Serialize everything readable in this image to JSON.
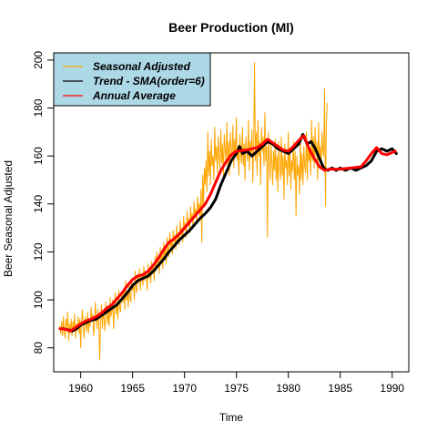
{
  "chart_data": {
    "type": "line",
    "title": "Beer Production (Ml)",
    "xlabel": "Time",
    "ylabel": "Beer Seasonal Adjusted",
    "xlim": [
      1957.4,
      1991.6
    ],
    "ylim": [
      70,
      203
    ],
    "xticks": [
      1960,
      1965,
      1970,
      1975,
      1980,
      1985,
      1990
    ],
    "yticks": [
      80,
      100,
      120,
      140,
      160,
      180,
      200
    ],
    "grid": false,
    "legend": {
      "position": "top-left",
      "background": "#add8e6",
      "entries": [
        {
          "label": "Seasonal Adjusted",
          "color": "#ffa500"
        },
        {
          "label": "Trend - SMA(order=6)",
          "color": "#000000"
        },
        {
          "label": "Annual Average",
          "color": "#ff0000"
        }
      ]
    },
    "series": [
      {
        "name": "Seasonal Adjusted",
        "color": "#ffa500",
        "x_start": 1958.0,
        "x_step": 0.0833,
        "values": [
          89,
          86,
          91,
          85,
          93,
          87,
          84,
          92,
          88,
          95,
          83,
          90,
          86,
          92,
          85,
          91,
          88,
          94,
          84,
          90,
          87,
          93,
          86,
          92,
          80,
          91,
          96,
          88,
          84,
          93,
          90,
          87,
          95,
          86,
          92,
          89,
          97,
          91,
          94,
          85,
          90,
          99,
          92,
          88,
          96,
          90,
          75,
          93,
          98,
          88,
          95,
          92,
          87,
          99,
          94,
          90,
          96,
          89,
          101,
          93,
          95,
          100,
          88,
          97,
          103,
          94,
          99,
          92,
          104,
          97,
          95,
          101,
          102,
          99,
          105,
          96,
          108,
          100,
          103,
          97,
          106,
          101,
          99,
          109,
          104,
          107,
          100,
          112,
          105,
          103,
          110,
          107,
          113,
          104,
          109,
          111,
          106,
          114,
          108,
          112,
          110,
          104,
          115,
          109,
          113,
          107,
          116,
          111,
          114,
          108,
          118,
          112,
          120,
          114,
          117,
          111,
          122,
          116,
          119,
          113,
          124,
          118,
          121,
          115,
          126,
          120,
          118,
          128,
          122,
          125,
          119,
          129,
          124,
          127,
          121,
          131,
          125,
          128,
          123,
          133,
          127,
          130,
          124,
          135,
          129,
          132,
          126,
          137,
          131,
          134,
          128,
          139,
          133,
          136,
          130,
          141,
          135,
          138,
          132,
          143,
          137,
          140,
          134,
          146,
          124,
          152,
          140,
          155,
          148,
          158,
          145,
          170,
          152,
          162,
          148,
          167,
          156,
          160,
          150,
          172,
          158,
          164,
          153,
          168,
          160,
          155,
          171,
          157,
          165,
          151,
          169,
          162,
          158,
          174,
          156,
          166,
          152,
          170,
          163,
          159,
          173,
          155,
          167,
          161,
          176,
          158,
          164,
          152,
          169,
          161,
          157,
          172,
          156,
          165,
          150,
          168,
          162,
          158,
          175,
          154,
          166,
          160,
          171,
          149,
          163,
          199,
          158,
          170,
          152,
          175,
          160,
          166,
          148,
          172,
          162,
          168,
          156,
          178,
          158,
          164,
          126,
          170,
          160,
          150,
          165,
          158,
          148,
          162,
          154,
          167,
          150,
          160,
          145,
          166,
          155,
          150,
          168,
          152,
          160,
          142,
          165,
          155,
          158,
          148,
          170,
          152,
          163,
          146,
          158,
          154,
          166,
          150,
          162,
          135,
          160,
          152,
          156,
          144,
          168,
          150,
          161,
          148,
          164,
          156,
          153,
          170,
          150,
          166,
          158,
          162,
          152,
          175,
          158,
          168,
          155,
          172,
          160,
          166,
          150,
          174,
          158,
          164,
          156,
          170,
          162,
          160,
          188,
          139,
          172,
          182
        ]
      },
      {
        "name": "Trend - SMA(order=6)",
        "color": "#000000",
        "points": [
          [
            1958.3,
            88
          ],
          [
            1958.8,
            87.5
          ],
          [
            1959.2,
            87
          ],
          [
            1959.6,
            88
          ],
          [
            1960.0,
            89.5
          ],
          [
            1960.5,
            90.5
          ],
          [
            1961.0,
            91.5
          ],
          [
            1961.5,
            92
          ],
          [
            1962.0,
            93.5
          ],
          [
            1962.5,
            95
          ],
          [
            1963.0,
            96.5
          ],
          [
            1963.5,
            98
          ],
          [
            1964.0,
            100.5
          ],
          [
            1964.5,
            103
          ],
          [
            1965.0,
            106
          ],
          [
            1965.5,
            108
          ],
          [
            1966.0,
            109
          ],
          [
            1966.5,
            110
          ],
          [
            1967.0,
            112
          ],
          [
            1967.5,
            114.5
          ],
          [
            1968.0,
            117
          ],
          [
            1968.5,
            120
          ],
          [
            1969.0,
            122.5
          ],
          [
            1969.5,
            125
          ],
          [
            1970.0,
            127
          ],
          [
            1970.5,
            129
          ],
          [
            1971.0,
            131.5
          ],
          [
            1971.5,
            134
          ],
          [
            1972.0,
            136
          ],
          [
            1972.5,
            138.5
          ],
          [
            1973.0,
            142
          ],
          [
            1973.5,
            148
          ],
          [
            1974.0,
            153
          ],
          [
            1974.5,
            158
          ],
          [
            1975.0,
            161
          ],
          [
            1975.3,
            164
          ],
          [
            1975.6,
            161
          ],
          [
            1976.0,
            162
          ],
          [
            1976.5,
            160
          ],
          [
            1977.0,
            162
          ],
          [
            1977.5,
            164
          ],
          [
            1978.0,
            166
          ],
          [
            1978.5,
            165
          ],
          [
            1979.0,
            163
          ],
          [
            1979.5,
            162
          ],
          [
            1980.0,
            161
          ],
          [
            1980.5,
            163
          ],
          [
            1981.0,
            165
          ],
          [
            1981.4,
            169
          ],
          [
            1981.8,
            165
          ],
          [
            1982.2,
            166
          ],
          [
            1982.6,
            163
          ],
          [
            1983.0,
            159
          ],
          [
            1983.4,
            155
          ],
          [
            1983.8,
            154
          ],
          [
            1984.2,
            155
          ],
          [
            1984.6,
            154
          ],
          [
            1985.0,
            155
          ],
          [
            1985.5,
            154
          ],
          [
            1986.0,
            155
          ],
          [
            1986.5,
            154
          ],
          [
            1987.0,
            155
          ],
          [
            1987.5,
            156
          ],
          [
            1988.0,
            158
          ],
          [
            1988.5,
            162
          ],
          [
            1989.0,
            163
          ],
          [
            1989.5,
            162
          ],
          [
            1990.0,
            163
          ],
          [
            1990.4,
            161
          ]
        ]
      },
      {
        "name": "Annual Average",
        "color": "#ff0000",
        "points": [
          [
            1958.0,
            88
          ],
          [
            1958.5,
            87.8
          ],
          [
            1959.0,
            87
          ],
          [
            1959.5,
            88.5
          ],
          [
            1960.0,
            90
          ],
          [
            1960.5,
            91.2
          ],
          [
            1961.0,
            92
          ],
          [
            1961.5,
            93
          ],
          [
            1962.0,
            94.5
          ],
          [
            1962.5,
            96.5
          ],
          [
            1963.0,
            98
          ],
          [
            1963.5,
            100.5
          ],
          [
            1964.0,
            103
          ],
          [
            1964.5,
            106
          ],
          [
            1965.0,
            108.5
          ],
          [
            1965.5,
            110
          ],
          [
            1966.0,
            110.5
          ],
          [
            1966.5,
            112
          ],
          [
            1967.0,
            114.5
          ],
          [
            1967.5,
            117.5
          ],
          [
            1968.0,
            121
          ],
          [
            1968.5,
            124
          ],
          [
            1969.0,
            125.5
          ],
          [
            1969.5,
            127.5
          ],
          [
            1970.0,
            130
          ],
          [
            1970.5,
            132.5
          ],
          [
            1971.0,
            135
          ],
          [
            1971.5,
            137.5
          ],
          [
            1972.0,
            140
          ],
          [
            1972.5,
            144
          ],
          [
            1973.0,
            149
          ],
          [
            1973.5,
            154
          ],
          [
            1974.0,
            157.5
          ],
          [
            1974.5,
            160.5
          ],
          [
            1975.0,
            162
          ],
          [
            1976.0,
            162.5
          ],
          [
            1977.0,
            163.5
          ],
          [
            1977.5,
            165
          ],
          [
            1978.0,
            167
          ],
          [
            1978.5,
            165.5
          ],
          [
            1979.0,
            164
          ],
          [
            1979.5,
            162.5
          ],
          [
            1980.0,
            162
          ],
          [
            1980.5,
            164
          ],
          [
            1981.0,
            166.5
          ],
          [
            1981.5,
            168.5
          ],
          [
            1982.0,
            163
          ],
          [
            1982.5,
            159
          ],
          [
            1983.0,
            155.5
          ],
          [
            1983.5,
            154
          ],
          [
            1984.0,
            154.5
          ],
          [
            1985.0,
            154.5
          ],
          [
            1986.0,
            155
          ],
          [
            1987.0,
            155.5
          ],
          [
            1987.5,
            158
          ],
          [
            1988.0,
            161
          ],
          [
            1988.5,
            163.5
          ],
          [
            1989.0,
            161
          ],
          [
            1989.5,
            160.5
          ],
          [
            1990.0,
            161.5
          ],
          [
            1990.3,
            162
          ]
        ]
      }
    ]
  }
}
